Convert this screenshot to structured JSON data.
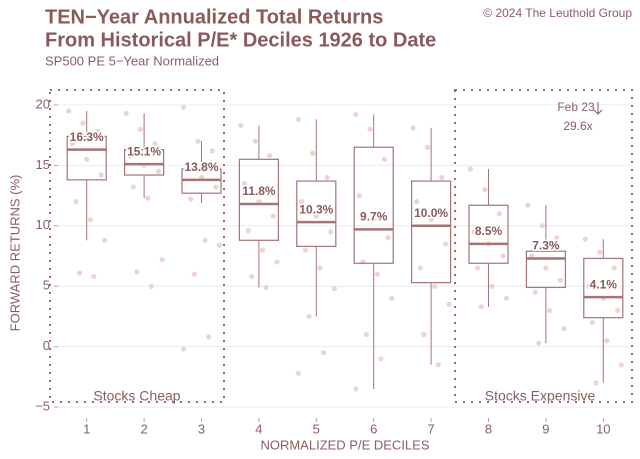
{
  "chart_data": {
    "type": "box",
    "title": [
      "TEN−Year Annualized Total Returns",
      "From Historical P/E* Deciles 1926 to Date"
    ],
    "subtitle": "SP500 PE 5−Year Normalized",
    "source": "© 2024 The Leuthold Group",
    "x_label": "NORMALIZED P/E DECILES",
    "y_label": "FORWARD RETURNS (%)",
    "categories": [
      "1",
      "2",
      "3",
      "4",
      "5",
      "6",
      "7",
      "8",
      "9",
      "10"
    ],
    "boxes": [
      {
        "low": 8.8,
        "q1": 13.8,
        "median": 16.3,
        "q3": 17.4,
        "high": 19.5
      },
      {
        "low": 12.3,
        "q1": 14.2,
        "median": 15.1,
        "q3": 16.3,
        "high": 19.3
      },
      {
        "low": 11.9,
        "q1": 12.7,
        "median": 13.8,
        "q3": 14.7,
        "high": 17.0
      },
      {
        "low": 4.9,
        "q1": 8.8,
        "median": 11.8,
        "q3": 15.5,
        "high": 18.3
      },
      {
        "low": 2.5,
        "q1": 8.3,
        "median": 10.3,
        "q3": 13.7,
        "high": 18.8
      },
      {
        "low": -3.5,
        "q1": 6.9,
        "median": 9.7,
        "q3": 16.5,
        "high": 19.2
      },
      {
        "low": -1.5,
        "q1": 5.3,
        "median": 10.0,
        "q3": 13.7,
        "high": 18.1
      },
      {
        "low": 3.3,
        "q1": 6.9,
        "median": 8.5,
        "q3": 11.7,
        "high": 14.7
      },
      {
        "low": 0.3,
        "q1": 4.9,
        "median": 7.3,
        "q3": 7.9,
        "high": 11.7
      },
      {
        "low": -3.0,
        "q1": 2.4,
        "median": 4.1,
        "q3": 7.3,
        "high": 8.9
      }
    ],
    "value_labels": [
      "16.3%",
      "15.1%",
      "13.8%",
      "11.8%",
      "10.3%",
      "9.7%",
      "10.0%",
      "8.5%",
      "7.3%",
      "4.1%"
    ],
    "points": [
      [
        19.5,
        18.5,
        17.8,
        16.8,
        15.5,
        14.2,
        12.0,
        10.5,
        8.8,
        6.1,
        5.8
      ],
      [
        19.3,
        18.0,
        16.8,
        15.8,
        15.0,
        14.5,
        13.2,
        12.3,
        7.2,
        6.2,
        5.0
      ],
      [
        19.8,
        17.0,
        16.2,
        15.0,
        14.0,
        13.2,
        12.2,
        8.8,
        8.4,
        6.0,
        0.8,
        -0.2
      ],
      [
        18.3,
        17.0,
        15.8,
        13.5,
        12.0,
        10.8,
        9.6,
        8.0,
        7.0,
        5.8,
        4.9
      ],
      [
        18.8,
        16.0,
        14.0,
        12.0,
        10.8,
        9.5,
        8.0,
        6.5,
        4.8,
        2.5,
        -0.5,
        -2.2
      ],
      [
        19.2,
        18.0,
        15.5,
        12.5,
        10.5,
        9.0,
        7.0,
        6.0,
        4.0,
        1.0,
        -1.0,
        -3.5
      ],
      [
        18.1,
        16.5,
        14.0,
        12.0,
        10.5,
        8.5,
        6.5,
        5.0,
        3.5,
        1.0,
        -1.5
      ],
      [
        14.7,
        13.0,
        11.0,
        9.5,
        8.5,
        7.5,
        6.5,
        5.0,
        4.0,
        3.3
      ],
      [
        11.7,
        10.0,
        9.0,
        7.5,
        6.5,
        5.5,
        4.5,
        3.0,
        1.5,
        0.3
      ],
      [
        8.9,
        7.8,
        6.5,
        5.0,
        4.0,
        3.0,
        2.0,
        0.5,
        -1.5,
        -3.0
      ]
    ],
    "region_labels": [
      "Stocks Cheap",
      "Stocks Expensive"
    ],
    "annotation_date": "Feb 23",
    "annotation_value": "29.6x",
    "ylim": [
      -5.9,
      21.4
    ],
    "yticks": [
      {
        "value": -5,
        "label": "−5"
      },
      0,
      5,
      10,
      15,
      20
    ],
    "grid": true,
    "box_color": "#a57474",
    "point_color": "#efd3d3"
  }
}
